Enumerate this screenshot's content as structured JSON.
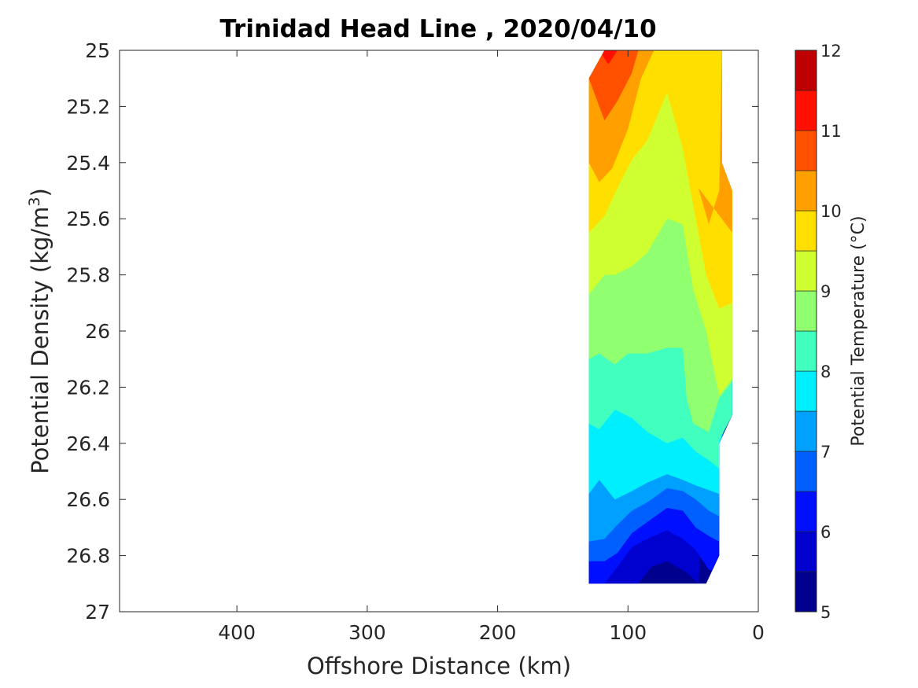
{
  "chart_data": {
    "type": "filled-contour",
    "title": "Trinidad Head Line , 2020/04/10",
    "xlabel": "Offshore Distance (km)",
    "ylabel_main": "Potential Density (kg/m",
    "ylabel_sup": "3",
    "ylabel_end": ")",
    "x_reversed": true,
    "xlim": [
      0,
      490
    ],
    "ylim": [
      25,
      27
    ],
    "y_reversed": true,
    "xticks": [
      400,
      300,
      200,
      100,
      0
    ],
    "yticks": [
      25,
      25.2,
      25.4,
      25.6,
      25.8,
      26,
      26.2,
      26.4,
      26.6,
      26.8,
      27
    ],
    "data_extent": {
      "x_range": [
        20,
        130
      ],
      "y_range": [
        25,
        26.9
      ]
    },
    "colorbar": {
      "label": "Potential Temperature (°C)",
      "range": [
        5,
        12
      ],
      "step": 0.5,
      "tick_values": [
        5,
        6,
        7,
        8,
        9,
        10,
        11,
        12
      ],
      "colors": [
        "#00008f",
        "#0000cf",
        "#0010ff",
        "#0060ff",
        "#00a0ff",
        "#00efff",
        "#40ffbf",
        "#90ff70",
        "#cfff30",
        "#ffdf00",
        "#ff9f00",
        "#ff5000",
        "#ff1000",
        "#bf0000"
      ]
    },
    "contour_bands": [
      {
        "level": 5.5,
        "color": "#0000cf",
        "boundary": [
          [
            92,
            26.9
          ],
          [
            82,
            26.84
          ],
          [
            70,
            26.82
          ],
          [
            55,
            26.86
          ],
          [
            46,
            26.9
          ]
        ]
      },
      {
        "level": 6.0,
        "color": "#0010ff",
        "boundary": [
          [
            118,
            26.9
          ],
          [
            108,
            26.84
          ],
          [
            97,
            26.77
          ],
          [
            85,
            26.74
          ],
          [
            70,
            26.71
          ],
          [
            58,
            26.74
          ],
          [
            48,
            26.78
          ],
          [
            38,
            26.85
          ],
          [
            30,
            26.86
          ]
        ]
      },
      {
        "level": 6.5,
        "color": "#0060ff",
        "boundary": [
          [
            130,
            26.82
          ],
          [
            118,
            26.82
          ],
          [
            108,
            26.79
          ],
          [
            97,
            26.72
          ],
          [
            85,
            26.68
          ],
          [
            70,
            26.63
          ],
          [
            58,
            26.64
          ],
          [
            48,
            26.7
          ],
          [
            38,
            26.73
          ],
          [
            30,
            26.75
          ]
        ]
      },
      {
        "level": 7.0,
        "color": "#00a0ff",
        "boundary": [
          [
            130,
            26.75
          ],
          [
            118,
            26.74
          ],
          [
            108,
            26.69
          ],
          [
            97,
            26.64
          ],
          [
            85,
            26.61
          ],
          [
            70,
            26.56
          ],
          [
            58,
            26.57
          ],
          [
            48,
            26.6
          ],
          [
            38,
            26.64
          ],
          [
            30,
            26.66
          ]
        ]
      },
      {
        "level": 7.5,
        "color": "#00efff",
        "boundary": [
          [
            130,
            26.58
          ],
          [
            122,
            26.53
          ],
          [
            110,
            26.6
          ],
          [
            97,
            26.57
          ],
          [
            85,
            26.54
          ],
          [
            70,
            26.51
          ],
          [
            58,
            26.53
          ],
          [
            48,
            26.55
          ],
          [
            30,
            26.58
          ]
        ]
      },
      {
        "level": 8.0,
        "color": "#40ffbf",
        "boundary": [
          [
            130,
            26.33
          ],
          [
            122,
            26.35
          ],
          [
            110,
            26.28
          ],
          [
            97,
            26.31
          ],
          [
            85,
            26.36
          ],
          [
            70,
            26.4
          ],
          [
            58,
            26.38
          ],
          [
            48,
            26.43
          ],
          [
            38,
            26.46
          ],
          [
            30,
            26.49
          ],
          [
            30,
            26.39
          ],
          [
            20,
            26.3
          ]
        ]
      },
      {
        "level": 8.5,
        "color": "#90ff70",
        "boundary": [
          [
            130,
            26.1
          ],
          [
            122,
            26.08
          ],
          [
            110,
            26.12
          ],
          [
            100,
            26.08
          ],
          [
            85,
            26.08
          ],
          [
            70,
            26.06
          ],
          [
            58,
            26.06
          ],
          [
            55,
            26.24
          ],
          [
            50,
            26.33
          ],
          [
            38,
            26.36
          ],
          [
            30,
            26.24
          ],
          [
            20,
            26.18
          ]
        ]
      },
      {
        "level": 9.0,
        "color": "#cfff30",
        "boundary": [
          [
            130,
            25.87
          ],
          [
            118,
            25.8
          ],
          [
            110,
            25.8
          ],
          [
            97,
            25.77
          ],
          [
            85,
            25.72
          ],
          [
            70,
            25.6
          ],
          [
            58,
            25.62
          ],
          [
            50,
            25.85
          ],
          [
            40,
            26.0
          ],
          [
            30,
            26.23
          ],
          [
            20,
            26.17
          ]
        ]
      },
      {
        "level": 9.5,
        "color": "#ffdf00",
        "boundary": [
          [
            130,
            25.65
          ],
          [
            118,
            25.59
          ],
          [
            108,
            25.49
          ],
          [
            97,
            25.39
          ],
          [
            85,
            25.32
          ],
          [
            70,
            25.15
          ],
          [
            58,
            25.35
          ],
          [
            50,
            25.55
          ],
          [
            40,
            25.8
          ],
          [
            30,
            25.92
          ],
          [
            20,
            25.9
          ]
        ]
      },
      {
        "level": 10.0,
        "color": "#ff9f00",
        "boundary": [
          [
            130,
            25.4
          ],
          [
            122,
            25.47
          ],
          [
            112,
            25.42
          ],
          [
            100,
            25.28
          ],
          [
            90,
            25.1
          ],
          [
            80,
            25.0
          ],
          [
            28,
            25.0
          ],
          [
            30,
            25.5
          ],
          [
            38,
            25.62
          ],
          [
            46,
            25.49
          ],
          [
            20,
            25.65
          ]
        ]
      },
      {
        "level": 10.5,
        "color": "#ff5000",
        "boundary": [
          [
            130,
            25.1
          ],
          [
            118,
            25.25
          ],
          [
            108,
            25.18
          ],
          [
            97,
            25.08
          ],
          [
            92,
            25.0
          ],
          [
            130,
            25.0
          ]
        ]
      },
      {
        "level": 11.0,
        "color": "#ff1000",
        "boundary": [
          [
            122,
            25.0
          ],
          [
            115,
            25.05
          ],
          [
            108,
            25.0
          ]
        ]
      }
    ]
  }
}
